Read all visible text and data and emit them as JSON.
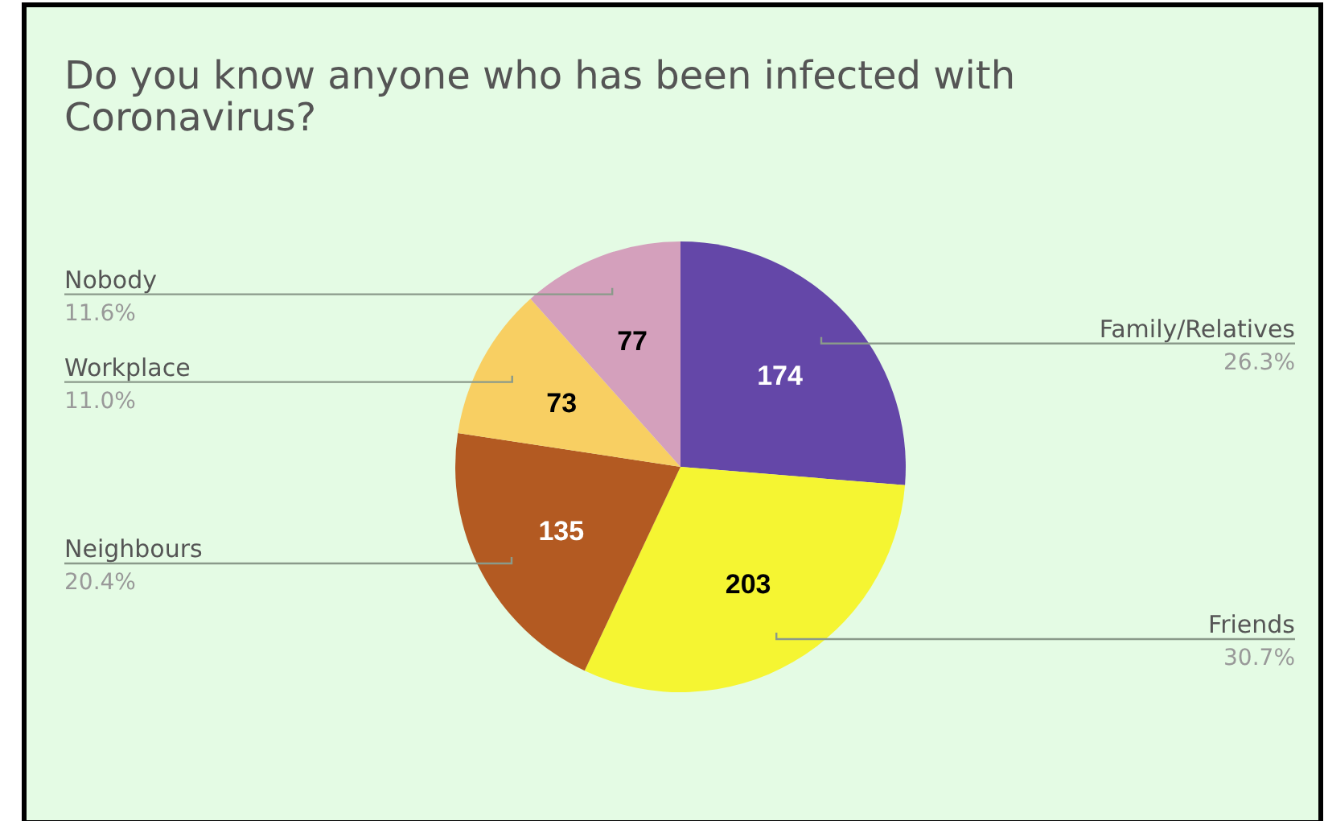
{
  "chart_data": {
    "type": "pie",
    "title": "Do you know anyone who has been infected with Coronavirus?",
    "categories": [
      "Family/Relatives",
      "Friends",
      "Neighbours",
      "Workplace",
      "Nobody"
    ],
    "values": [
      26.3,
      30.7,
      20.4,
      11.0,
      11.6
    ],
    "colors": [
      "#6447a8",
      "#f5f532",
      "#b35a22",
      "#f8cf62",
      "#d4a0bc"
    ],
    "value_labels": [
      "26.3%",
      "30.7%",
      "20.4%",
      "11.0%",
      "11.6%"
    ],
    "annotations": [
      "174",
      "203",
      "135",
      "73",
      "77"
    ]
  }
}
